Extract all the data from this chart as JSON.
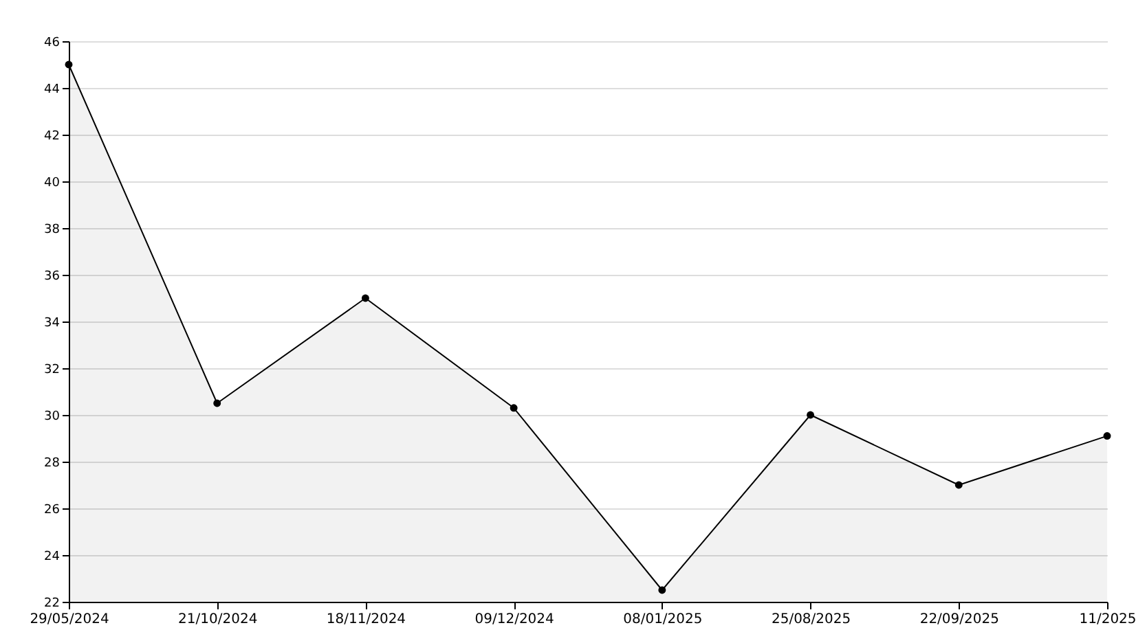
{
  "chart_data": {
    "type": "area",
    "categories": [
      "29/05/2024",
      "21/10/2024",
      "18/11/2024",
      "09/12/2024",
      "08/01/2025",
      "25/08/2025",
      "22/09/2025",
      "11/2025"
    ],
    "series": [
      {
        "color": "#000000",
        "values": [
          45,
          30.5,
          35,
          30.3,
          22.5,
          30,
          27,
          29.1
        ]
      }
    ],
    "ylim": [
      22,
      46
    ],
    "yticks": [
      22,
      24,
      26,
      28,
      30,
      32,
      34,
      36,
      38,
      40,
      42,
      44,
      46
    ],
    "grid": "y",
    "marker": "circle",
    "line_style": "solid"
  }
}
